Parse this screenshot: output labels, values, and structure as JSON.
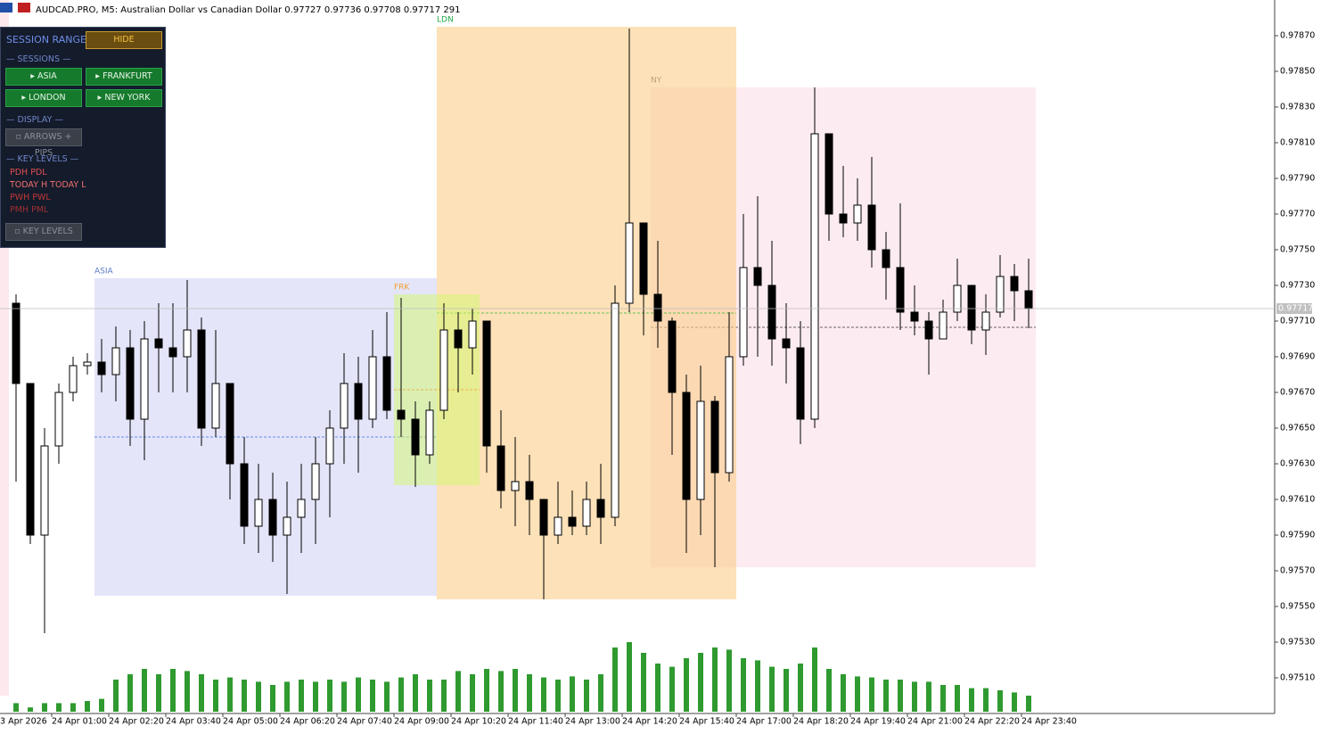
{
  "chart_data": {
    "type": "candlestick",
    "title": "AUDCAD.PRO, M5:  Australian Dollar vs Canadian Dollar  0.97727 0.97736 0.97708 0.97717  291",
    "x_edge_label": "3 Apr 2026",
    "categories": [
      null,
      null,
      null,
      "24 Apr 01:00",
      null,
      null,
      null,
      "24 Apr 02:20",
      null,
      null,
      null,
      "24 Apr 03:40",
      null,
      null,
      null,
      "24 Apr 05:00",
      null,
      null,
      null,
      "24 Apr 06:20",
      null,
      null,
      null,
      "24 Apr 07:40",
      null,
      null,
      null,
      "24 Apr 09:00",
      null,
      null,
      null,
      "24 Apr 10:20",
      null,
      null,
      null,
      "24 Apr 11:40",
      null,
      null,
      null,
      "24 Apr 13:00",
      null,
      null,
      null,
      "24 Apr 14:20",
      null,
      null,
      null,
      "24 Apr 15:40",
      null,
      null,
      null,
      "24 Apr 17:00",
      null,
      null,
      null,
      "24 Apr 18:20",
      null,
      null,
      null,
      "24 Apr 19:40",
      null,
      null,
      null,
      "24 Apr 21:00",
      null,
      null,
      null,
      "24 Apr 22:20",
      null,
      null,
      null,
      "24 Apr 23:40"
    ],
    "open": [
      0.9772,
      0.97675,
      0.9759,
      0.9764,
      0.9767,
      0.97685,
      0.97687,
      0.9768,
      0.97695,
      0.97655,
      0.977,
      0.97695,
      0.9769,
      0.97705,
      0.9765,
      0.97675,
      0.9763,
      0.97595,
      0.9761,
      0.9759,
      0.976,
      0.9761,
      0.9763,
      0.9765,
      0.97675,
      0.97655,
      0.9769,
      0.9766,
      0.97655,
      0.97635,
      0.9766,
      0.97705,
      0.97695,
      0.9771,
      0.9764,
      0.97615,
      0.9762,
      0.9761,
      0.9759,
      0.976,
      0.97595,
      0.9761,
      0.976,
      0.9772,
      0.97765,
      0.97725,
      0.9771,
      0.9767,
      0.9761,
      0.97665,
      0.97625,
      0.9769,
      0.9774,
      0.9773,
      0.977,
      0.97695,
      0.97655,
      0.97815,
      0.9777,
      0.97765,
      0.97775,
      0.9775,
      0.9774,
      0.97715,
      0.9771,
      0.977,
      0.97715,
      0.9773,
      0.97705,
      0.97715,
      0.97735,
      0.97727
    ],
    "high": [
      0.97725,
      0.97675,
      0.9765,
      0.97675,
      0.9769,
      0.97692,
      0.977,
      0.97707,
      0.97705,
      0.9771,
      0.9772,
      0.9772,
      0.97733,
      0.97712,
      0.97705,
      0.97675,
      0.97645,
      0.9763,
      0.97625,
      0.9762,
      0.9763,
      0.97645,
      0.9766,
      0.97692,
      0.9769,
      0.97705,
      0.97715,
      0.97723,
      0.97665,
      0.97665,
      0.9772,
      0.97715,
      0.97717,
      0.9771,
      0.9766,
      0.97645,
      0.97635,
      0.9761,
      0.9762,
      0.97615,
      0.9762,
      0.9763,
      0.9773,
      0.97874,
      0.97765,
      0.97755,
      0.97712,
      0.9768,
      0.97685,
      0.97668,
      0.97715,
      0.9777,
      0.9778,
      0.97755,
      0.9772,
      0.9771,
      0.97841,
      0.97815,
      0.97797,
      0.9779,
      0.97802,
      0.9776,
      0.97776,
      0.9773,
      0.97715,
      0.97722,
      0.97745,
      0.9773,
      0.97725,
      0.97747,
      0.97742,
      0.97745
    ],
    "low": [
      0.9762,
      0.97585,
      0.97535,
      0.9763,
      0.97665,
      0.9768,
      0.9767,
      0.97665,
      0.9764,
      0.97632,
      0.9767,
      0.9767,
      0.9767,
      0.9764,
      0.97645,
      0.9761,
      0.97585,
      0.9758,
      0.97575,
      0.97557,
      0.9758,
      0.97585,
      0.976,
      0.9763,
      0.97625,
      0.9765,
      0.97655,
      0.97645,
      0.97617,
      0.9763,
      0.97655,
      0.9767,
      0.9768,
      0.97625,
      0.97605,
      0.97595,
      0.9759,
      0.97554,
      0.97585,
      0.9759,
      0.9759,
      0.97585,
      0.97595,
      0.97715,
      0.97702,
      0.97695,
      0.97635,
      0.9758,
      0.9759,
      0.97572,
      0.9762,
      0.97685,
      0.9769,
      0.97685,
      0.97675,
      0.97641,
      0.9765,
      0.97755,
      0.97757,
      0.97755,
      0.9774,
      0.97722,
      0.97705,
      0.97702,
      0.9768,
      0.977,
      0.9771,
      0.97697,
      0.97691,
      0.97712,
      0.9771,
      0.97706
    ],
    "close": [
      0.97675,
      0.9759,
      0.9764,
      0.9767,
      0.97685,
      0.97687,
      0.9768,
      0.97695,
      0.97655,
      0.977,
      0.97695,
      0.9769,
      0.97705,
      0.9765,
      0.97675,
      0.9763,
      0.97595,
      0.9761,
      0.9759,
      0.976,
      0.9761,
      0.9763,
      0.9765,
      0.97675,
      0.97655,
      0.9769,
      0.9766,
      0.97655,
      0.97635,
      0.9766,
      0.97705,
      0.97695,
      0.9771,
      0.9764,
      0.97615,
      0.9762,
      0.9761,
      0.9759,
      0.976,
      0.97595,
      0.9761,
      0.976,
      0.9772,
      0.97765,
      0.97725,
      0.9771,
      0.9767,
      0.9761,
      0.97665,
      0.97625,
      0.9769,
      0.9774,
      0.9773,
      0.977,
      0.97695,
      0.97655,
      0.97815,
      0.9777,
      0.97765,
      0.97775,
      0.9775,
      0.9774,
      0.97715,
      0.9771,
      0.977,
      0.97715,
      0.9773,
      0.97705,
      0.97715,
      0.97735,
      0.97727,
      0.97717
    ],
    "volume": [
      8,
      4,
      8,
      8,
      8,
      10,
      12,
      30,
      35,
      40,
      35,
      40,
      38,
      35,
      30,
      32,
      30,
      28,
      25,
      28,
      30,
      28,
      30,
      28,
      32,
      30,
      28,
      32,
      35,
      30,
      30,
      38,
      35,
      40,
      38,
      40,
      35,
      32,
      30,
      33,
      30,
      35,
      60,
      65,
      55,
      45,
      42,
      50,
      55,
      60,
      58,
      50,
      48,
      42,
      40,
      45,
      60,
      40,
      35,
      33,
      32,
      30,
      30,
      28,
      28,
      25,
      25,
      22,
      22,
      20,
      18,
      15
    ],
    "volume_color": "#2f9a2f",
    "last_price": 0.97717,
    "ylim": [
      0.9749,
      0.9789
    ],
    "yticks": [
      {
        "value": 0.9787,
        "label": "0.97870"
      },
      {
        "value": 0.9785,
        "label": "0.97850"
      },
      {
        "value": 0.9783,
        "label": "0.97830"
      },
      {
        "value": 0.9781,
        "label": "0.97810"
      },
      {
        "value": 0.9779,
        "label": "0.97790"
      },
      {
        "value": 0.9777,
        "label": "0.97770"
      },
      {
        "value": 0.9775,
        "label": "0.97750"
      },
      {
        "value": 0.9773,
        "label": "0.97730"
      },
      {
        "value": 0.9771,
        "label": "0.97710"
      },
      {
        "value": 0.9769,
        "label": "0.97690"
      },
      {
        "value": 0.9767,
        "label": "0.97670"
      },
      {
        "value": 0.9765,
        "label": "0.97650"
      },
      {
        "value": 0.9763,
        "label": "0.97630"
      },
      {
        "value": 0.9761,
        "label": "0.97610"
      },
      {
        "value": 0.9759,
        "label": "0.97590"
      },
      {
        "value": 0.9757,
        "label": "0.97570"
      },
      {
        "value": 0.9755,
        "label": "0.97550"
      },
      {
        "value": 0.9753,
        "label": "0.97530"
      },
      {
        "value": 0.9751,
        "label": "0.97510"
      }
    ],
    "sessions": [
      {
        "name": "ASIA",
        "start": 6,
        "end": 30,
        "high": 0.97734,
        "low": 0.97556,
        "color": "rgba(190,192,240,0.42)",
        "label_color": "#5a78c8",
        "mid_color": "#3f6fe0"
      },
      {
        "name": "NY",
        "start": 45,
        "end": 72,
        "high": 0.97841,
        "low": 0.97572,
        "color": "rgba(252,222,234,0.6)",
        "label_color": "#555555",
        "mid_color": "#333333"
      },
      {
        "name": "LDN",
        "start": 30,
        "end": 51,
        "high": 0.97875,
        "low": 0.97554,
        "color": "rgba(252,206,140,0.62)",
        "label_color": "#22aa44",
        "mid_color": "#33bb33"
      },
      {
        "name": "FRK",
        "start": 27,
        "end": 33,
        "high": 0.97725,
        "low": 0.97618,
        "color": "rgba(210,250,110,0.5)",
        "label_color": "#f0a030",
        "mid_color": "#f0a030"
      }
    ]
  },
  "panel": {
    "title": "SESSION RANGE",
    "hide": "HIDE",
    "sessions_header": "SESSIONS",
    "session_buttons": [
      "▸ ASIA",
      "▸ FRANKFURT",
      "▸ LONDON",
      "▸ NEW YORK"
    ],
    "display_header": "DISPLAY",
    "display_button": "▫ ARROWS + PIPS",
    "key_levels_header": "KEY LEVELS",
    "key_levels": [
      "PDH  PDL",
      "TODAY H  TODAY L",
      "PWH  PWL",
      "PMH  PML"
    ],
    "key_levels_button": "▫ KEY LEVELS"
  }
}
